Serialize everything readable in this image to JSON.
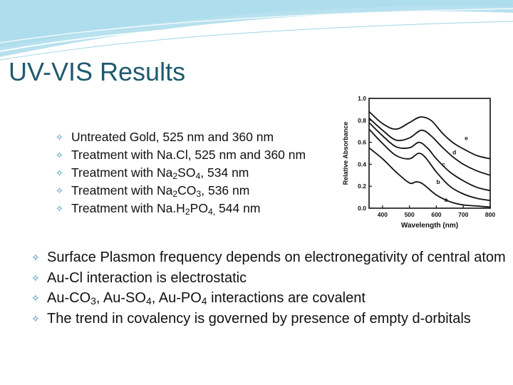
{
  "slide": {
    "title": "UV-VIS Results",
    "top_bullets": [
      {
        "parts": [
          "Untreated Gold, 525 nm and 360 nm"
        ]
      },
      {
        "parts": [
          "Treatment with Na.Cl, 525 nm and 360 nm"
        ]
      },
      {
        "parts": [
          "Treatment with Na",
          "2",
          "SO",
          "4",
          ", 534 nm"
        ]
      },
      {
        "parts": [
          "Treatment with Na",
          "2",
          "CO",
          "3",
          ", 536 nm"
        ]
      },
      {
        "parts": [
          "Treatment with Na.H",
          "2",
          "PO",
          "4,",
          " 544 nm"
        ]
      }
    ],
    "main_bullets": [
      {
        "parts": [
          "Surface Plasmon frequency depends on electronegativity of central atom"
        ]
      },
      {
        "parts": [
          "Au-Cl interaction is electrostatic"
        ]
      },
      {
        "parts": [
          "Au-CO",
          "3",
          ", Au-SO",
          "4",
          ", Au-PO",
          "4",
          " interactions are covalent"
        ]
      },
      {
        "parts": [
          "The trend in covalency is governed by presence of empty d-orbitals"
        ]
      }
    ],
    "bullet_icon": "swoosh-bullet-icon",
    "colors": {
      "title": "#1f5a70",
      "bullet": "#2b8aa8",
      "header_band": "#7cc8e0"
    }
  },
  "chart_data": {
    "type": "line",
    "xlabel": "Wavelength (nm)",
    "ylabel": "Relative Absorbance",
    "xlim": [
      350,
      800
    ],
    "ylim": [
      0.0,
      1.0
    ],
    "xticks": [
      400,
      500,
      600,
      700,
      800
    ],
    "yticks": [
      0.0,
      0.2,
      0.4,
      0.6,
      0.8,
      1.0
    ],
    "xtick_labels": [
      "400",
      "500",
      "600",
      "700",
      "800"
    ],
    "ytick_labels": [
      "0.0",
      "0.2",
      "0.4",
      "0.6",
      "0.8",
      "1.0"
    ],
    "grid": false,
    "series": [
      {
        "name": "a",
        "x": [
          350,
          400,
          450,
          500,
          525,
          550,
          600,
          650,
          700,
          750,
          800
        ],
        "y": [
          0.55,
          0.45,
          0.33,
          0.23,
          0.24,
          0.22,
          0.12,
          0.06,
          0.03,
          0.02,
          0.01
        ]
      },
      {
        "name": "b",
        "x": [
          350,
          400,
          450,
          500,
          534,
          560,
          600,
          650,
          700,
          750,
          800
        ],
        "y": [
          0.72,
          0.59,
          0.48,
          0.45,
          0.5,
          0.46,
          0.33,
          0.2,
          0.13,
          0.09,
          0.07
        ]
      },
      {
        "name": "c",
        "x": [
          350,
          400,
          450,
          500,
          536,
          570,
          600,
          650,
          700,
          750,
          800
        ],
        "y": [
          0.78,
          0.66,
          0.56,
          0.55,
          0.6,
          0.54,
          0.45,
          0.33,
          0.25,
          0.19,
          0.16
        ]
      },
      {
        "name": "d",
        "x": [
          350,
          400,
          450,
          500,
          544,
          580,
          620,
          660,
          700,
          750,
          800
        ],
        "y": [
          0.82,
          0.71,
          0.62,
          0.64,
          0.71,
          0.66,
          0.56,
          0.47,
          0.4,
          0.34,
          0.3
        ]
      },
      {
        "name": "e",
        "x": [
          350,
          400,
          450,
          500,
          540,
          580,
          620,
          660,
          700,
          750,
          800
        ],
        "y": [
          0.88,
          0.77,
          0.72,
          0.78,
          0.83,
          0.8,
          0.69,
          0.6,
          0.54,
          0.48,
          0.45
        ]
      }
    ]
  }
}
